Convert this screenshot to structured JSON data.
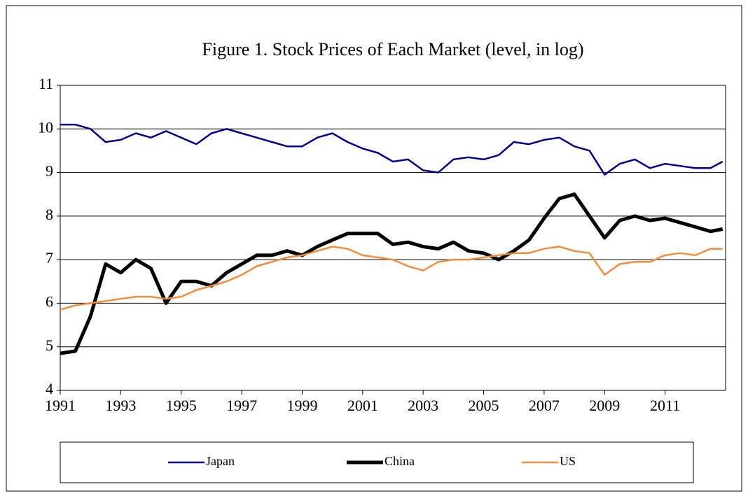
{
  "chart_data": {
    "type": "line",
    "title": "Figure 1. Stock Prices of Each Market (level, in log)",
    "x": [
      1991,
      1991.5,
      1992,
      1992.5,
      1993,
      1993.5,
      1994,
      1994.5,
      1995,
      1995.5,
      1996,
      1996.5,
      1997,
      1997.5,
      1998,
      1998.5,
      1999,
      1999.5,
      2000,
      2000.5,
      2001,
      2001.5,
      2002,
      2002.5,
      2003,
      2003.5,
      2004,
      2004.5,
      2005,
      2005.5,
      2006,
      2006.5,
      2007,
      2007.5,
      2008,
      2008.5,
      2009,
      2009.5,
      2010,
      2010.5,
      2011,
      2011.5,
      2012,
      2012.5,
      2012.9
    ],
    "series": [
      {
        "name": "Japan",
        "color": "#00008b",
        "values": [
          10.1,
          10.1,
          10.0,
          9.7,
          9.75,
          9.9,
          9.8,
          9.95,
          9.8,
          9.65,
          9.9,
          10.0,
          9.9,
          9.8,
          9.7,
          9.6,
          9.6,
          9.8,
          9.9,
          9.7,
          9.55,
          9.45,
          9.25,
          9.3,
          9.05,
          9.0,
          9.3,
          9.35,
          9.3,
          9.4,
          9.7,
          9.65,
          9.75,
          9.8,
          9.6,
          9.5,
          8.95,
          9.2,
          9.3,
          9.1,
          9.2,
          9.15,
          9.1,
          9.1,
          9.25
        ]
      },
      {
        "name": "China",
        "color": "#000000",
        "values": [
          4.85,
          4.9,
          5.7,
          6.9,
          6.7,
          7.0,
          6.8,
          6.0,
          6.5,
          6.5,
          6.4,
          6.7,
          6.9,
          7.1,
          7.1,
          7.2,
          7.1,
          7.3,
          7.45,
          7.6,
          7.6,
          7.6,
          7.35,
          7.4,
          7.3,
          7.25,
          7.4,
          7.2,
          7.15,
          7.0,
          7.2,
          7.45,
          7.95,
          8.4,
          8.5,
          8.0,
          7.5,
          7.9,
          8.0,
          7.9,
          7.95,
          7.85,
          7.75,
          7.65,
          7.7
        ]
      },
      {
        "name": "US",
        "color": "#f08c3c",
        "values": [
          5.85,
          5.95,
          6.0,
          6.05,
          6.1,
          6.15,
          6.15,
          6.1,
          6.15,
          6.3,
          6.4,
          6.5,
          6.65,
          6.85,
          6.95,
          7.05,
          7.1,
          7.2,
          7.3,
          7.25,
          7.1,
          7.05,
          7.0,
          6.85,
          6.75,
          6.95,
          7.0,
          7.0,
          7.05,
          7.1,
          7.15,
          7.15,
          7.25,
          7.3,
          7.2,
          7.15,
          6.65,
          6.9,
          6.95,
          6.95,
          7.1,
          7.15,
          7.1,
          7.25,
          7.25
        ]
      }
    ],
    "xlim": [
      1991,
      2013
    ],
    "xticks": [
      1991,
      1993,
      1995,
      1997,
      1999,
      2001,
      2003,
      2005,
      2007,
      2009,
      2011
    ],
    "ylim": [
      4,
      11
    ],
    "yticks": [
      4,
      5,
      6,
      7,
      8,
      9,
      10,
      11
    ],
    "grid": true,
    "legend": "bottom"
  }
}
